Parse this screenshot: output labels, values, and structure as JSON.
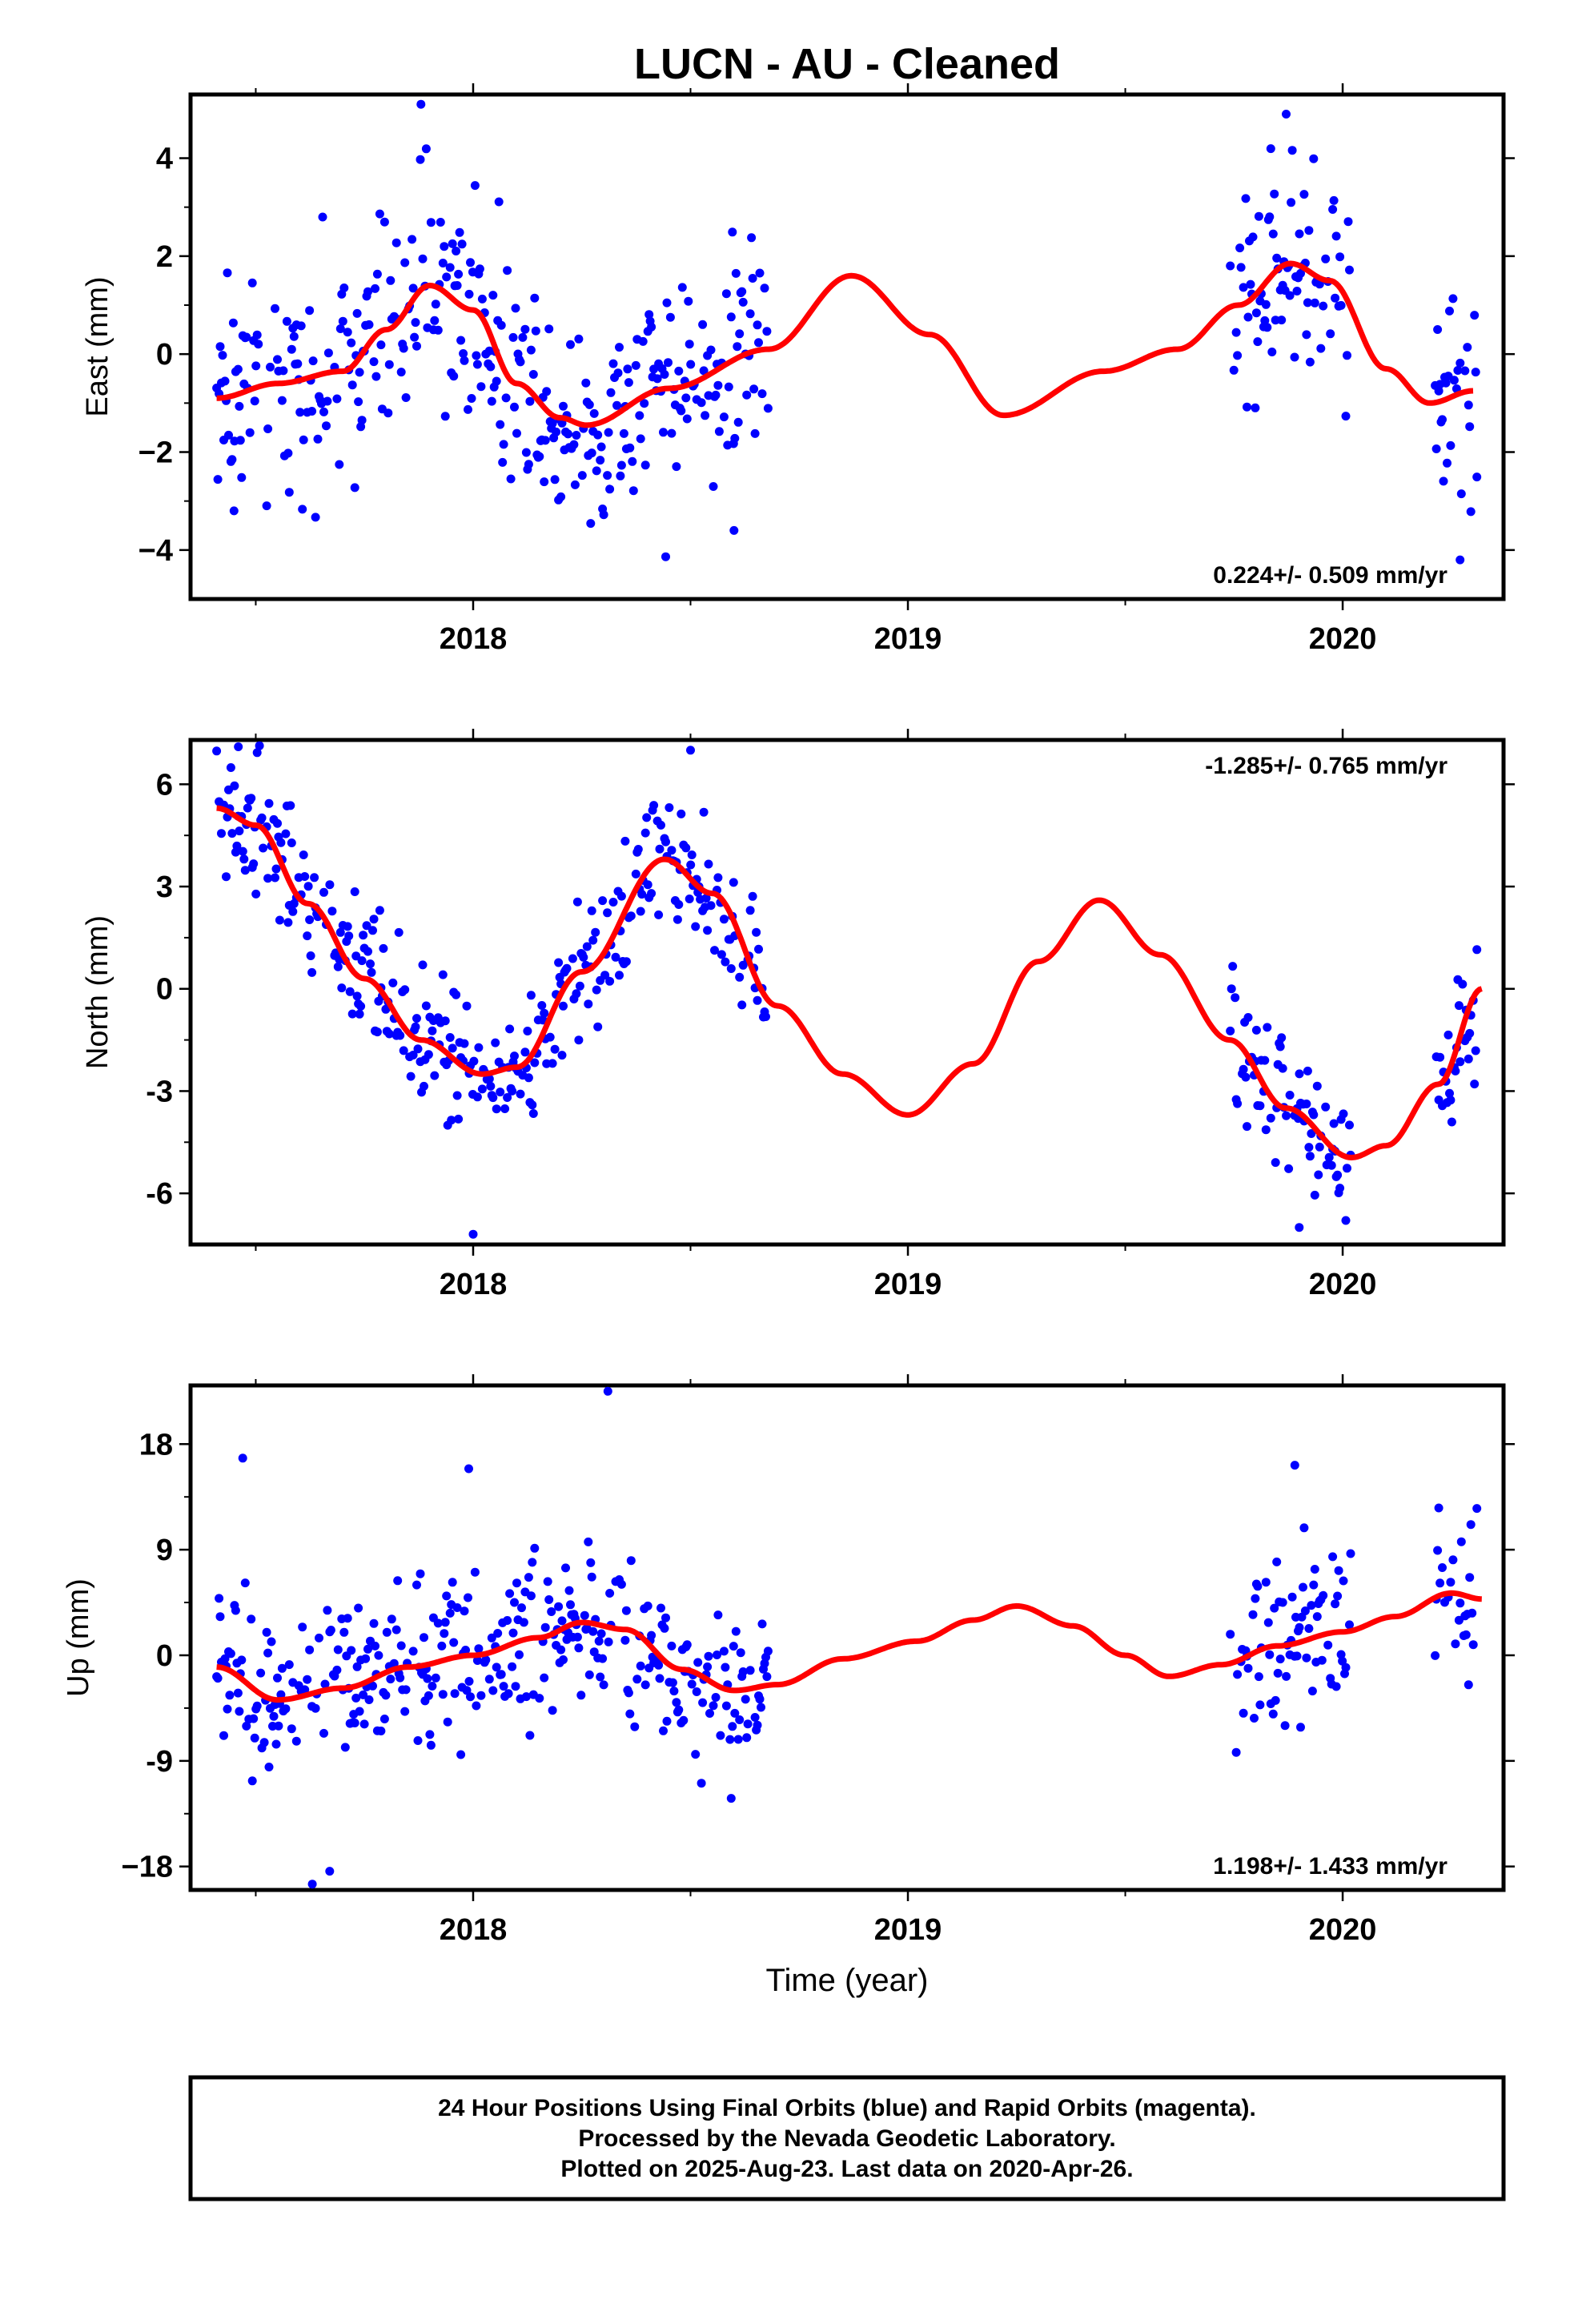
{
  "chart_title": "LUCN  - AU - Cleaned",
  "footer": {
    "lines": [
      "24 Hour Positions Using Final Orbits (blue) and Rapid Orbits (magenta).",
      "Processed by the Nevada Geodetic Laboratory.",
      "Plotted on 2025-Aug-23. Last data on 2020-Apr-26."
    ]
  },
  "colors": {
    "points": "#0000ff",
    "fit": "#ff0000",
    "frame": "#000000"
  },
  "chart_data": [
    {
      "type": "scatter",
      "ylabel": "East (mm)",
      "xlabel": "",
      "xlim": [
        2017.35,
        2020.37
      ],
      "ylim": [
        -5,
        5.3
      ],
      "yticks": [
        -4,
        -2,
        0,
        2,
        4
      ],
      "xticks": [
        2018,
        2019,
        2020
      ],
      "rate": "0.224+/- 0.509 mm/yr",
      "rate_position": "bottom-right",
      "gaps": [
        [
          2018.68,
          2019.74
        ],
        [
          2020.02,
          2020.21
        ]
      ],
      "noise": 1.15,
      "outliers": [
        [
          2017.88,
          5.1
        ],
        [
          2017.45,
          -3.2
        ],
        [
          2018.6,
          -3.6
        ],
        [
          2019.87,
          4.9
        ],
        [
          2020.27,
          -4.2
        ]
      ],
      "fit_points": [
        [
          2017.41,
          -0.9
        ],
        [
          2017.55,
          -0.6
        ],
        [
          2017.7,
          -0.35
        ],
        [
          2017.8,
          0.5
        ],
        [
          2017.9,
          1.4
        ],
        [
          2018.0,
          0.9
        ],
        [
          2018.1,
          -0.6
        ],
        [
          2018.2,
          -1.3
        ],
        [
          2018.26,
          -1.45
        ],
        [
          2018.45,
          -0.7
        ],
        [
          2018.68,
          0.1
        ],
        [
          2018.87,
          1.6
        ],
        [
          2019.05,
          0.4
        ],
        [
          2019.22,
          -1.25
        ],
        [
          2019.45,
          -0.35
        ],
        [
          2019.62,
          0.1
        ],
        [
          2019.76,
          1.0
        ],
        [
          2019.88,
          1.85
        ],
        [
          2019.97,
          1.5
        ],
        [
          2020.1,
          -0.3
        ],
        [
          2020.2,
          -1.0
        ],
        [
          2020.3,
          -0.75
        ]
      ]
    },
    {
      "type": "scatter",
      "ylabel": "North (mm)",
      "xlabel": "",
      "xlim": [
        2017.35,
        2020.37
      ],
      "ylim": [
        -7.5,
        7.3
      ],
      "yticks": [
        -6,
        -3,
        0,
        3,
        6
      ],
      "ytick_labels": [
        "-6",
        "-3",
        "0",
        "3",
        "6"
      ],
      "xticks": [
        2018,
        2019,
        2020
      ],
      "rate": "-1.285+/- 0.765 mm/yr",
      "rate_position": "top-right",
      "gaps": [
        [
          2018.68,
          2019.74
        ],
        [
          2020.02,
          2020.21
        ]
      ],
      "noise": 1.0,
      "outliers": [
        [
          2017.46,
          7.1
        ],
        [
          2018.0,
          -7.2
        ],
        [
          2019.9,
          -7.0
        ],
        [
          2018.5,
          7.0
        ]
      ],
      "fit_points": [
        [
          2017.41,
          5.3
        ],
        [
          2017.5,
          4.8
        ],
        [
          2017.62,
          2.5
        ],
        [
          2017.75,
          0.3
        ],
        [
          2017.88,
          -1.5
        ],
        [
          2018.02,
          -2.5
        ],
        [
          2018.1,
          -2.3
        ],
        [
          2018.25,
          0.5
        ],
        [
          2018.44,
          3.8
        ],
        [
          2018.55,
          2.8
        ],
        [
          2018.7,
          -0.5
        ],
        [
          2018.85,
          -2.5
        ],
        [
          2019.0,
          -3.7
        ],
        [
          2019.15,
          -2.2
        ],
        [
          2019.3,
          0.8
        ],
        [
          2019.44,
          2.6
        ],
        [
          2019.58,
          1.0
        ],
        [
          2019.74,
          -1.5
        ],
        [
          2019.87,
          -3.5
        ],
        [
          2020.02,
          -4.95
        ],
        [
          2020.1,
          -4.6
        ],
        [
          2020.22,
          -2.8
        ],
        [
          2020.32,
          0.0
        ]
      ]
    },
    {
      "type": "scatter",
      "ylabel": "Up (mm)",
      "xlabel": "Time (year)",
      "xlim": [
        2017.35,
        2020.37
      ],
      "ylim": [
        -20,
        23
      ],
      "yticks": [
        -18,
        -9,
        0,
        9,
        18
      ],
      "ytick_labels": [
        "−18",
        "-9",
        "0",
        "9",
        "18"
      ],
      "xticks": [
        2018,
        2019,
        2020
      ],
      "rate": "1.198+/- 1.433 mm/yr",
      "rate_position": "bottom-right",
      "gaps": [
        [
          2018.68,
          2019.74
        ],
        [
          2020.02,
          2020.21
        ]
      ],
      "noise": 3.6,
      "outliers": [
        [
          2018.31,
          22.5
        ],
        [
          2017.47,
          16.8
        ],
        [
          2017.99,
          15.9
        ],
        [
          2019.89,
          16.2
        ],
        [
          2017.63,
          -19.5
        ],
        [
          2017.67,
          -18.4
        ]
      ],
      "fit_points": [
        [
          2017.41,
          -1.0
        ],
        [
          2017.55,
          -3.8
        ],
        [
          2017.7,
          -2.8
        ],
        [
          2017.85,
          -1.0
        ],
        [
          2018.0,
          0.0
        ],
        [
          2018.15,
          1.5
        ],
        [
          2018.25,
          2.8
        ],
        [
          2018.35,
          2.2
        ],
        [
          2018.48,
          -1.2
        ],
        [
          2018.6,
          -3.0
        ],
        [
          2018.7,
          -2.5
        ],
        [
          2018.85,
          -0.3
        ],
        [
          2019.02,
          1.2
        ],
        [
          2019.15,
          3.0
        ],
        [
          2019.25,
          4.2
        ],
        [
          2019.38,
          2.5
        ],
        [
          2019.5,
          0.0
        ],
        [
          2019.6,
          -1.8
        ],
        [
          2019.72,
          -0.8
        ],
        [
          2019.85,
          0.8
        ],
        [
          2020.0,
          2.0
        ],
        [
          2020.12,
          3.3
        ],
        [
          2020.25,
          5.3
        ],
        [
          2020.32,
          4.8
        ]
      ]
    }
  ]
}
